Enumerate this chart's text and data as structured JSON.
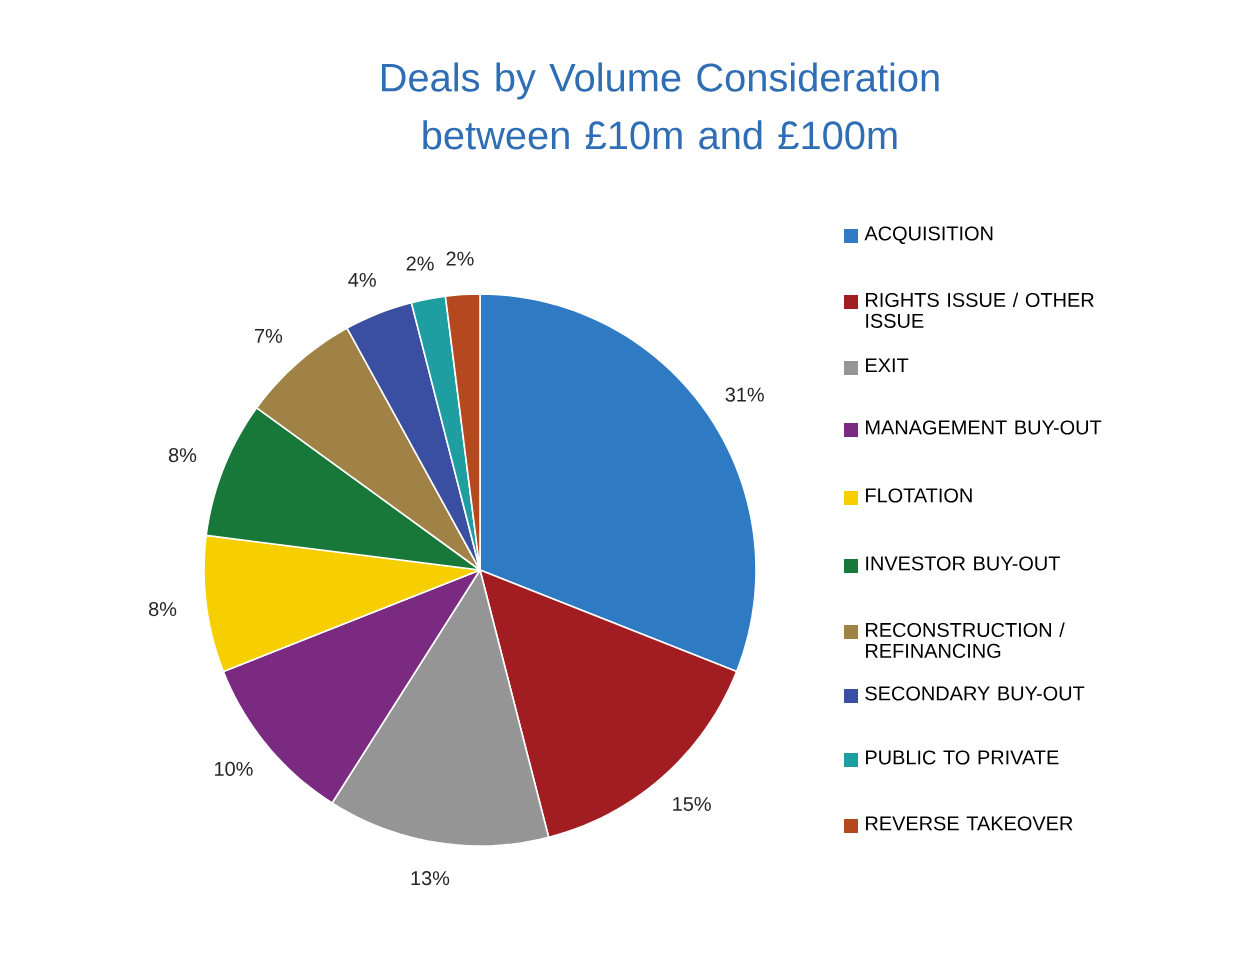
{
  "chart_data": {
    "type": "pie",
    "title": "Deals by Volume Consideration between £10m and £100m",
    "categories": [
      "ACQUISITION",
      "RIGHTS ISSUE / OTHER ISSUE",
      "EXIT",
      "MANAGEMENT BUY-OUT",
      "FLOTATION",
      "INVESTOR BUY-OUT",
      "RECONSTRUCTION / REFINANCING",
      "SECONDARY BUY-OUT",
      "PUBLIC TO PRIVATE",
      "REVERSE TAKEOVER"
    ],
    "values": [
      31,
      15,
      13,
      10,
      8,
      8,
      7,
      4,
      2,
      2
    ],
    "colors": [
      "#2e7bc4",
      "#a21d22",
      "#959595",
      "#7a2a81",
      "#f7cf00",
      "#18783a",
      "#a08246",
      "#3a4fa1",
      "#1f9ea2",
      "#b5481f"
    ],
    "value_labels": [
      "31%",
      "15%",
      "13%",
      "10%",
      "8%",
      "8%",
      "7%",
      "4%",
      "2%",
      "2%"
    ],
    "legend": "right"
  }
}
